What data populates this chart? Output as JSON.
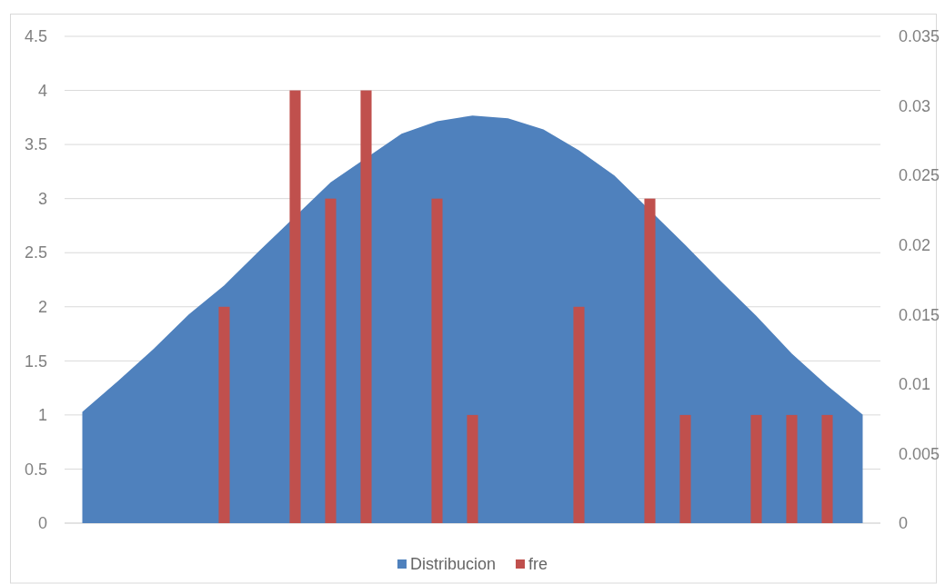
{
  "chart_data": {
    "type": "bar",
    "categories": [
      null,
      null,
      null,
      null,
      null,
      null,
      null,
      null,
      null,
      null,
      null,
      null,
      null,
      null,
      null,
      null,
      null,
      null,
      null,
      null,
      null,
      null,
      null
    ],
    "series": [
      {
        "name": "Distribucion",
        "type": "area",
        "axis": "y2",
        "color": "#4f81bd",
        "values": [
          0.008,
          0.0102,
          0.0125,
          0.015,
          0.0171,
          0.0196,
          null,
          0.0245,
          null,
          0.028,
          0.0289,
          0.0293,
          0.0291,
          0.0283,
          0.0268,
          0.025,
          null,
          0.02,
          0.0174,
          0.0149,
          0.0122,
          0.0099,
          0.0078
        ]
      },
      {
        "name": "fre",
        "color": "#c0504d",
        "values": [
          null,
          null,
          null,
          null,
          2,
          null,
          4,
          3,
          4,
          null,
          3,
          1,
          null,
          null,
          2,
          null,
          3,
          1,
          null,
          1,
          1,
          1,
          null
        ]
      }
    ],
    "ylim": [
      0,
      4.5
    ],
    "yticks": [
      0,
      0.5,
      1,
      1.5,
      2,
      2.5,
      3,
      3.5,
      4,
      4.5
    ],
    "y2lim": [
      0,
      0.035
    ],
    "y2ticks": [
      0,
      0.005,
      0.01,
      0.015,
      0.02,
      0.025,
      0.03,
      0.035
    ],
    "grid": "y",
    "legend": "bottom"
  }
}
